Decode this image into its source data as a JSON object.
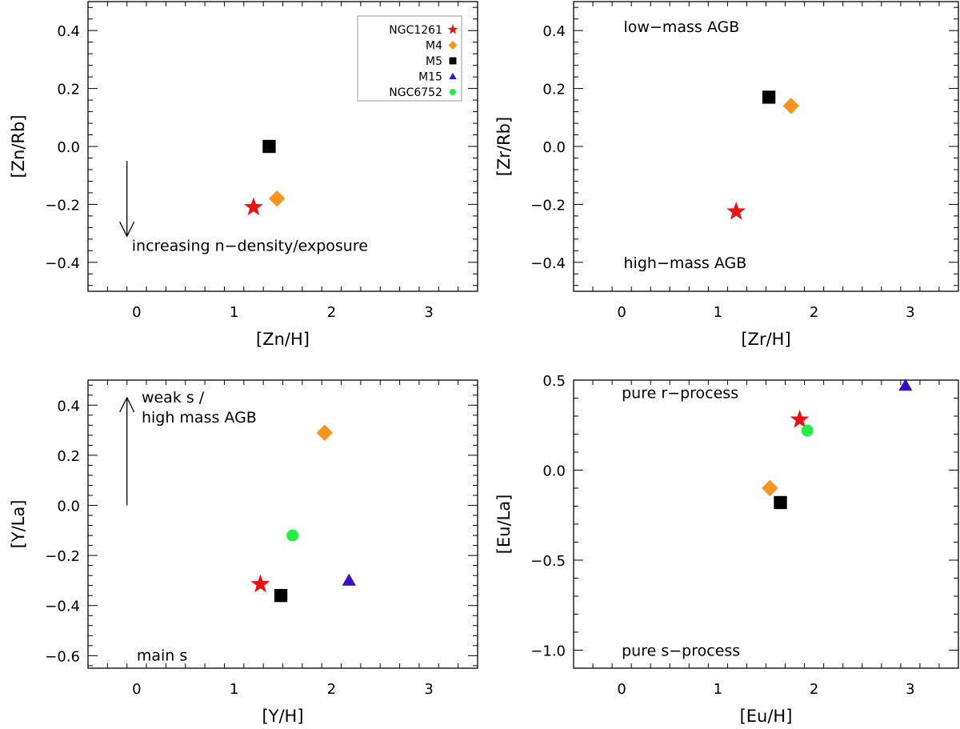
{
  "colors": {
    "NGC1261": "#ee1111",
    "M4": "#f7941d",
    "M5": "#000000",
    "M15": "#3a0fc8",
    "NGC6752": "#22ee44"
  },
  "chart_data": [
    {
      "type": "scatter",
      "xlabel": "[Zn/H]",
      "ylabel": "[Zn/Rb]",
      "xlim": [
        -0.5,
        3.5
      ],
      "ylim": [
        -0.5,
        0.5
      ],
      "xticks": [
        0,
        1,
        2,
        3
      ],
      "xtick_labels": [
        "0",
        "1",
        "2",
        "3"
      ],
      "yticks": [
        -0.4,
        -0.2,
        0.0,
        0.2,
        0.4
      ],
      "ytick_labels": [
        "−0.4",
        "−0.2",
        "0.0",
        "0.2",
        "0.4"
      ],
      "legend": {
        "placement": "top-right",
        "entries": [
          {
            "name": "NGC1261",
            "marker": "star"
          },
          {
            "name": "M4",
            "marker": "diamond"
          },
          {
            "name": "M5",
            "marker": "square"
          },
          {
            "name": "M15",
            "marker": "triangle"
          },
          {
            "name": "NGC6752",
            "marker": "circle"
          }
        ]
      },
      "annotations": [
        {
          "text": "increasing n−density/exposure",
          "x": -0.05,
          "y": -0.36
        }
      ],
      "arrows": [
        {
          "x": -0.1,
          "y_from": -0.05,
          "y_to": -0.31
        }
      ],
      "points": [
        {
          "series": "NGC1261",
          "marker": "star",
          "x": 1.2,
          "y": -0.21
        },
        {
          "series": "M4",
          "marker": "diamond",
          "x": 1.44,
          "y": -0.18
        },
        {
          "series": "M5",
          "marker": "square",
          "x": 1.36,
          "y": 0.0
        }
      ]
    },
    {
      "type": "scatter",
      "xlabel": "[Zr/H]",
      "ylabel": "[Zr/Rb]",
      "xlim": [
        -0.5,
        3.5
      ],
      "ylim": [
        -0.5,
        0.5
      ],
      "xticks": [
        0,
        1,
        2,
        3
      ],
      "xtick_labels": [
        "0",
        "1",
        "2",
        "3"
      ],
      "yticks": [
        -0.4,
        -0.2,
        0.0,
        0.2,
        0.4
      ],
      "ytick_labels": [
        "−0.4",
        "−0.2",
        "0.0",
        "0.2",
        "0.4"
      ],
      "annotations": [
        {
          "text": "low−mass AGB",
          "x": 0.02,
          "y": 0.395
        },
        {
          "text": "high−mass AGB",
          "x": 0.02,
          "y": -0.42
        }
      ],
      "arrows": [],
      "points": [
        {
          "series": "NGC1261",
          "marker": "star",
          "x": 1.19,
          "y": -0.225
        },
        {
          "series": "M4",
          "marker": "diamond",
          "x": 1.76,
          "y": 0.14
        },
        {
          "series": "M5",
          "marker": "square",
          "x": 1.53,
          "y": 0.17
        }
      ]
    },
    {
      "type": "scatter",
      "xlabel": "[Y/H]",
      "ylabel": "[Y/La]",
      "xlim": [
        -0.5,
        3.5
      ],
      "ylim": [
        -0.65,
        0.5
      ],
      "xticks": [
        0,
        1,
        2,
        3
      ],
      "xtick_labels": [
        "0",
        "1",
        "2",
        "3"
      ],
      "yticks": [
        -0.6,
        -0.4,
        -0.2,
        0.0,
        0.2,
        0.4
      ],
      "ytick_labels": [
        "−0.6",
        "−0.4",
        "−0.2",
        "0.0",
        "0.2",
        "0.4"
      ],
      "annotations": [
        {
          "text": "weak s /",
          "x": 0.05,
          "y": 0.41
        },
        {
          "text": "high mass AGB",
          "x": 0.05,
          "y": 0.33
        },
        {
          "text": "main s",
          "x": 0.0,
          "y": -0.62
        }
      ],
      "arrows": [
        {
          "x": -0.1,
          "y_from": 0.0,
          "y_to": 0.43
        }
      ],
      "points": [
        {
          "series": "NGC1261",
          "marker": "star",
          "x": 1.27,
          "y": -0.315
        },
        {
          "series": "M4",
          "marker": "diamond",
          "x": 1.93,
          "y": 0.29
        },
        {
          "series": "M5",
          "marker": "square",
          "x": 1.48,
          "y": -0.36
        },
        {
          "series": "M15",
          "marker": "triangle",
          "x": 2.18,
          "y": -0.3
        },
        {
          "series": "NGC6752",
          "marker": "circle",
          "x": 1.6,
          "y": -0.12
        }
      ]
    },
    {
      "type": "scatter",
      "xlabel": "[Eu/H]",
      "ylabel": "[Eu/La]",
      "xlim": [
        -0.5,
        3.5
      ],
      "ylim": [
        -1.1,
        0.5
      ],
      "xticks": [
        0,
        1,
        2,
        3
      ],
      "xtick_labels": [
        "0",
        "1",
        "2",
        "3"
      ],
      "yticks": [
        -1.0,
        -0.5,
        0.0,
        0.5
      ],
      "ytick_labels": [
        "−1.0",
        "−0.5",
        "0.0",
        "0.5"
      ],
      "annotations": [
        {
          "text": "pure r−process",
          "x": 0.0,
          "y": 0.4
        },
        {
          "text": "pure s−process",
          "x": 0.0,
          "y": -1.03
        }
      ],
      "arrows": [],
      "points": [
        {
          "series": "NGC1261",
          "marker": "star",
          "x": 1.85,
          "y": 0.28
        },
        {
          "series": "M4",
          "marker": "diamond",
          "x": 1.54,
          "y": -0.1
        },
        {
          "series": "M5",
          "marker": "square",
          "x": 1.65,
          "y": -0.18
        },
        {
          "series": "M15",
          "marker": "triangle",
          "x": 2.95,
          "y": 0.47
        },
        {
          "series": "NGC6752",
          "marker": "circle",
          "x": 1.93,
          "y": 0.22
        }
      ]
    }
  ]
}
